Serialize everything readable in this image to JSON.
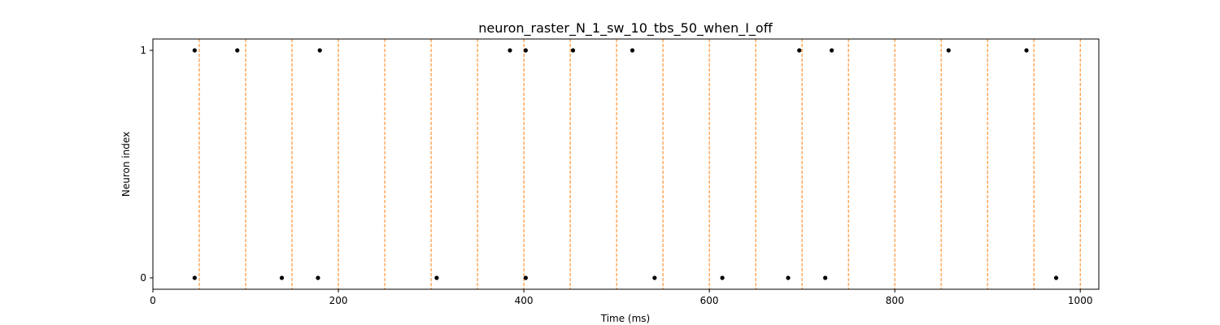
{
  "chart_data": {
    "type": "scatter",
    "title": "neuron_raster_N_1_sw_10_tbs_50_when_I_off",
    "xlabel": "Time (ms)",
    "ylabel": "Neuron index",
    "xlim": [
      0,
      1020
    ],
    "ylim": [
      -0.05,
      1.05
    ],
    "x_ticks": [
      0,
      200,
      400,
      600,
      800,
      1000
    ],
    "y_ticks": [
      0,
      1
    ],
    "grid": false,
    "legend": "none",
    "spike_color": "#000000",
    "vline_color": "#ff7f0e",
    "vline_x": [
      0,
      50,
      100,
      150,
      200,
      250,
      300,
      350,
      400,
      450,
      500,
      550,
      600,
      650,
      700,
      750,
      800,
      850,
      900,
      950,
      1000
    ],
    "series": [
      {
        "y": 1,
        "x": [
          45,
          91,
          180,
          385,
          402,
          453,
          517,
          697,
          732,
          858,
          942
        ]
      },
      {
        "y": 0,
        "x": [
          45,
          139,
          178,
          306,
          402,
          541,
          614,
          685,
          725,
          974
        ]
      }
    ]
  }
}
